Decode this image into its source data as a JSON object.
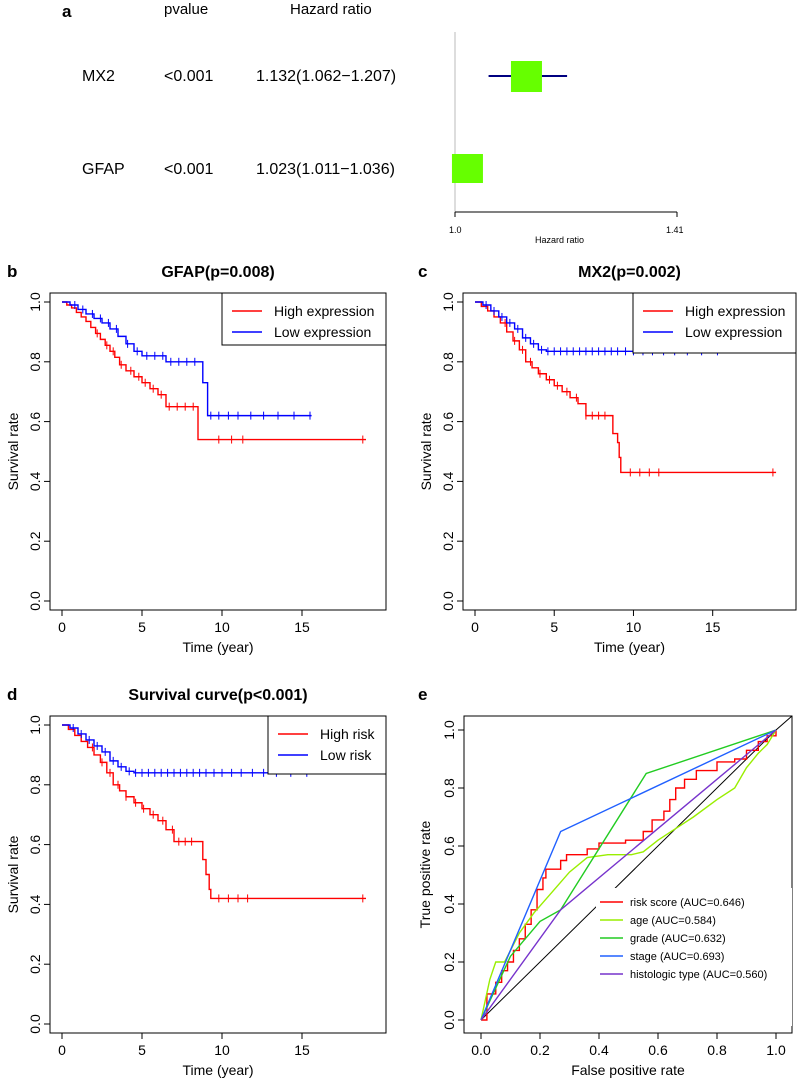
{
  "panel_letters": {
    "a": "a",
    "b": "b",
    "c": "c",
    "d": "d",
    "e": "e"
  },
  "chart_data": [
    {
      "id": "a",
      "type": "forest",
      "headers": {
        "pvalue": "pvalue",
        "hr": "Hazard ratio"
      },
      "xlabel": "Hazard ratio",
      "xlim": [
        1.0,
        1.41
      ],
      "xticks": [
        "1.0",
        "1.41"
      ],
      "rows": [
        {
          "name": "MX2",
          "pvalue": "<0.001",
          "hr_text": "1.132(1.062−1.207)",
          "hr": 1.132,
          "lo": 1.062,
          "hi": 1.207
        },
        {
          "name": "GFAP",
          "pvalue": "<0.001",
          "hr_text": "1.023(1.011−1.036)",
          "hr": 1.023,
          "lo": 1.011,
          "hi": 1.036
        }
      ],
      "colors": {
        "box": "#66ff00",
        "ci": "#000080",
        "ref": "#bbbbbb"
      }
    },
    {
      "id": "b",
      "type": "line",
      "title": "GFAP(p=0.008)",
      "xlabel": "Time (year)",
      "ylabel": "Survival rate",
      "xlim": [
        0,
        19.5
      ],
      "ylim": [
        0,
        1.0
      ],
      "xticks": [
        0,
        5,
        10,
        15
      ],
      "yticks": [
        "0.0",
        "0.2",
        "0.4",
        "0.6",
        "0.8",
        "1.0"
      ],
      "legend": "top-right",
      "series": [
        {
          "name": "High expression",
          "color": "#ff0000",
          "points": [
            [
              0,
              1.0
            ],
            [
              0.3,
              0.99
            ],
            [
              0.6,
              0.98
            ],
            [
              0.9,
              0.965
            ],
            [
              1.2,
              0.95
            ],
            [
              1.5,
              0.935
            ],
            [
              1.8,
              0.915
            ],
            [
              2.1,
              0.895
            ],
            [
              2.4,
              0.875
            ],
            [
              2.7,
              0.855
            ],
            [
              3.0,
              0.835
            ],
            [
              3.3,
              0.815
            ],
            [
              3.6,
              0.79
            ],
            [
              4.0,
              0.77
            ],
            [
              4.5,
              0.75
            ],
            [
              5.0,
              0.73
            ],
            [
              5.5,
              0.71
            ],
            [
              6.0,
              0.69
            ],
            [
              6.5,
              0.65
            ],
            [
              8.5,
              0.65
            ],
            [
              8.5,
              0.54
            ],
            [
              19,
              0.54
            ]
          ],
          "censor": [
            2.2,
            2.8,
            3.2,
            3.7,
            4.3,
            4.8,
            5.2,
            5.7,
            6.2,
            6.7,
            7.2,
            7.7,
            8.2,
            9.8,
            10.6,
            11.3,
            18.8
          ]
        },
        {
          "name": "Low expression",
          "color": "#0000ff",
          "points": [
            [
              0,
              1.0
            ],
            [
              0.5,
              0.99
            ],
            [
              1.0,
              0.975
            ],
            [
              1.5,
              0.96
            ],
            [
              2.0,
              0.945
            ],
            [
              2.5,
              0.93
            ],
            [
              3.0,
              0.91
            ],
            [
              3.5,
              0.885
            ],
            [
              4.0,
              0.86
            ],
            [
              4.5,
              0.835
            ],
            [
              5.0,
              0.82
            ],
            [
              6.5,
              0.8
            ],
            [
              8.8,
              0.8
            ],
            [
              8.8,
              0.73
            ],
            [
              9.1,
              0.73
            ],
            [
              9.1,
              0.62
            ],
            [
              15.6,
              0.62
            ]
          ],
          "censor": [
            0.8,
            1.3,
            1.9,
            2.4,
            2.9,
            3.4,
            4.1,
            4.7,
            5.3,
            5.8,
            6.3,
            6.8,
            7.3,
            7.8,
            8.3,
            9.3,
            9.8,
            10.4,
            11.0,
            11.8,
            12.6,
            13.5,
            14.5,
            15.5
          ]
        }
      ]
    },
    {
      "id": "c",
      "type": "line",
      "title": "MX2(p=0.002)",
      "xlabel": "Time (year)",
      "ylabel": "Survival rate",
      "xlim": [
        0,
        19.5
      ],
      "ylim": [
        0,
        1.0
      ],
      "xticks": [
        0,
        5,
        10,
        15
      ],
      "yticks": [
        "0.0",
        "0.2",
        "0.4",
        "0.6",
        "0.8",
        "1.0"
      ],
      "legend": "top-right",
      "series": [
        {
          "name": "High expression",
          "color": "#ff0000",
          "points": [
            [
              0,
              1.0
            ],
            [
              0.4,
              0.985
            ],
            [
              0.8,
              0.97
            ],
            [
              1.2,
              0.95
            ],
            [
              1.6,
              0.93
            ],
            [
              2.0,
              0.9
            ],
            [
              2.4,
              0.87
            ],
            [
              2.8,
              0.84
            ],
            [
              3.2,
              0.8
            ],
            [
              3.6,
              0.78
            ],
            [
              4.0,
              0.76
            ],
            [
              4.5,
              0.74
            ],
            [
              5.0,
              0.72
            ],
            [
              5.5,
              0.7
            ],
            [
              6.0,
              0.68
            ],
            [
              6.5,
              0.66
            ],
            [
              7.0,
              0.62
            ],
            [
              8.5,
              0.62
            ],
            [
              8.7,
              0.56
            ],
            [
              9.0,
              0.53
            ],
            [
              9.1,
              0.48
            ],
            [
              9.2,
              0.43
            ],
            [
              19,
              0.43
            ]
          ],
          "censor": [
            1.9,
            2.5,
            3.0,
            3.5,
            4.1,
            4.7,
            5.2,
            5.8,
            6.4,
            7.0,
            7.4,
            7.8,
            8.2,
            9.8,
            10.4,
            11.0,
            11.6,
            18.8
          ]
        },
        {
          "name": "Low expression",
          "color": "#0000ff",
          "points": [
            [
              0,
              1.0
            ],
            [
              0.5,
              0.99
            ],
            [
              1.0,
              0.97
            ],
            [
              1.5,
              0.95
            ],
            [
              2.0,
              0.93
            ],
            [
              2.5,
              0.91
            ],
            [
              3.0,
              0.88
            ],
            [
              3.5,
              0.86
            ],
            [
              4.0,
              0.84
            ],
            [
              4.5,
              0.835
            ],
            [
              15.6,
              0.835
            ]
          ],
          "censor": [
            0.7,
            1.2,
            1.7,
            2.2,
            2.7,
            3.2,
            3.7,
            4.2,
            4.6,
            5.0,
            5.4,
            5.8,
            6.2,
            6.6,
            7.0,
            7.4,
            7.8,
            8.2,
            8.6,
            9.0,
            9.5,
            10.0,
            10.6,
            11.2,
            11.9,
            12.6,
            13.4,
            14.3,
            15.3
          ]
        }
      ]
    },
    {
      "id": "d",
      "type": "line",
      "title": "Survival curve(p<0.001)",
      "xlabel": "Time (year)",
      "ylabel": "Survival rate",
      "xlim": [
        0,
        19.5
      ],
      "ylim": [
        0,
        1.0
      ],
      "xticks": [
        0,
        5,
        10,
        15
      ],
      "yticks": [
        "0.0",
        "0.2",
        "0.4",
        "0.6",
        "0.8",
        "1.0"
      ],
      "legend": "top-right",
      "series": [
        {
          "name": "High risk",
          "color": "#ff0000",
          "points": [
            [
              0,
              1.0
            ],
            [
              0.4,
              0.985
            ],
            [
              0.8,
              0.965
            ],
            [
              1.2,
              0.945
            ],
            [
              1.6,
              0.925
            ],
            [
              2.0,
              0.9
            ],
            [
              2.4,
              0.875
            ],
            [
              2.8,
              0.84
            ],
            [
              3.2,
              0.8
            ],
            [
              3.6,
              0.78
            ],
            [
              4.0,
              0.76
            ],
            [
              4.5,
              0.74
            ],
            [
              5.0,
              0.72
            ],
            [
              5.5,
              0.7
            ],
            [
              6.0,
              0.68
            ],
            [
              6.5,
              0.65
            ],
            [
              7.0,
              0.61
            ],
            [
              8.5,
              0.61
            ],
            [
              8.8,
              0.55
            ],
            [
              9.0,
              0.5
            ],
            [
              9.2,
              0.45
            ],
            [
              9.3,
              0.42
            ],
            [
              19,
              0.42
            ]
          ],
          "censor": [
            1.9,
            2.5,
            3.0,
            3.5,
            4.0,
            4.6,
            5.1,
            5.7,
            6.3,
            6.9,
            7.3,
            7.7,
            8.1,
            9.8,
            10.4,
            11.0,
            11.6,
            18.8
          ]
        },
        {
          "name": "Low risk",
          "color": "#0000ff",
          "points": [
            [
              0,
              1.0
            ],
            [
              0.5,
              0.99
            ],
            [
              1.0,
              0.97
            ],
            [
              1.5,
              0.95
            ],
            [
              2.0,
              0.93
            ],
            [
              2.5,
              0.91
            ],
            [
              3.0,
              0.88
            ],
            [
              3.5,
              0.86
            ],
            [
              4.0,
              0.845
            ],
            [
              4.5,
              0.84
            ],
            [
              15.6,
              0.84
            ]
          ],
          "censor": [
            0.7,
            1.2,
            1.7,
            2.2,
            2.7,
            3.2,
            3.7,
            4.2,
            4.6,
            5.0,
            5.4,
            5.8,
            6.2,
            6.6,
            7.0,
            7.4,
            7.8,
            8.2,
            8.6,
            9.0,
            9.5,
            10.0,
            10.6,
            11.2,
            11.9,
            12.6,
            13.4,
            14.3,
            15.3
          ]
        }
      ]
    },
    {
      "id": "e",
      "type": "roc",
      "xlabel": "False positive rate",
      "ylabel": "True positive rate",
      "xlim": [
        0,
        1
      ],
      "ylim": [
        0,
        1
      ],
      "xticks": [
        "0.0",
        "0.2",
        "0.4",
        "0.6",
        "0.8",
        "1.0"
      ],
      "yticks": [
        "0.0",
        "0.2",
        "0.4",
        "0.6",
        "0.8",
        "1.0"
      ],
      "legend": "bottom-right",
      "series": [
        {
          "name": "risk score (AUC=0.646)",
          "color": "#ff0000",
          "points": [
            [
              0,
              0
            ],
            [
              0.02,
              0.09
            ],
            [
              0.05,
              0.13
            ],
            [
              0.07,
              0.17
            ],
            [
              0.09,
              0.2
            ],
            [
              0.11,
              0.24
            ],
            [
              0.13,
              0.28
            ],
            [
              0.15,
              0.33
            ],
            [
              0.17,
              0.38
            ],
            [
              0.19,
              0.45
            ],
            [
              0.21,
              0.49
            ],
            [
              0.22,
              0.52
            ],
            [
              0.25,
              0.52
            ],
            [
              0.27,
              0.55
            ],
            [
              0.29,
              0.57
            ],
            [
              0.33,
              0.57
            ],
            [
              0.36,
              0.59
            ],
            [
              0.4,
              0.61
            ],
            [
              0.45,
              0.61
            ],
            [
              0.49,
              0.62
            ],
            [
              0.53,
              0.62
            ],
            [
              0.55,
              0.65
            ],
            [
              0.58,
              0.69
            ],
            [
              0.62,
              0.72
            ],
            [
              0.64,
              0.76
            ],
            [
              0.66,
              0.8
            ],
            [
              0.69,
              0.83
            ],
            [
              0.73,
              0.86
            ],
            [
              0.76,
              0.86
            ],
            [
              0.8,
              0.89
            ],
            [
              0.86,
              0.9
            ],
            [
              0.9,
              0.93
            ],
            [
              0.94,
              0.96
            ],
            [
              0.97,
              0.98
            ],
            [
              1,
              1
            ]
          ]
        },
        {
          "name": "age (AUC=0.584)",
          "color": "#99ee00",
          "points": [
            [
              0,
              0
            ],
            [
              0.03,
              0.14
            ],
            [
              0.05,
              0.2
            ],
            [
              0.08,
              0.2
            ],
            [
              0.1,
              0.24
            ],
            [
              0.13,
              0.3
            ],
            [
              0.18,
              0.37
            ],
            [
              0.24,
              0.44
            ],
            [
              0.3,
              0.51
            ],
            [
              0.36,
              0.56
            ],
            [
              0.43,
              0.57
            ],
            [
              0.51,
              0.57
            ],
            [
              0.55,
              0.58
            ],
            [
              0.6,
              0.62
            ],
            [
              0.66,
              0.66
            ],
            [
              0.72,
              0.7
            ],
            [
              0.8,
              0.76
            ],
            [
              0.86,
              0.8
            ],
            [
              0.9,
              0.87
            ],
            [
              0.94,
              0.92
            ],
            [
              0.97,
              0.95
            ],
            [
              1,
              1
            ]
          ]
        },
        {
          "name": "grade (AUC=0.632)",
          "color": "#22cc22",
          "points": [
            [
              0,
              0
            ],
            [
              0.1,
              0.22
            ],
            [
              0.2,
              0.34
            ],
            [
              0.27,
              0.38
            ],
            [
              0.56,
              0.85
            ],
            [
              1,
              1
            ]
          ]
        },
        {
          "name": "stage (AUC=0.693)",
          "color": "#2060ff",
          "points": [
            [
              0,
              0
            ],
            [
              0.27,
              0.65
            ],
            [
              1,
              1
            ]
          ]
        },
        {
          "name": "histologic type (AUC=0.560)",
          "color": "#7733cc",
          "points": [
            [
              0,
              0
            ],
            [
              0.27,
              0.38
            ],
            [
              1,
              1
            ]
          ]
        }
      ],
      "diagonal_color": "#000000"
    }
  ]
}
